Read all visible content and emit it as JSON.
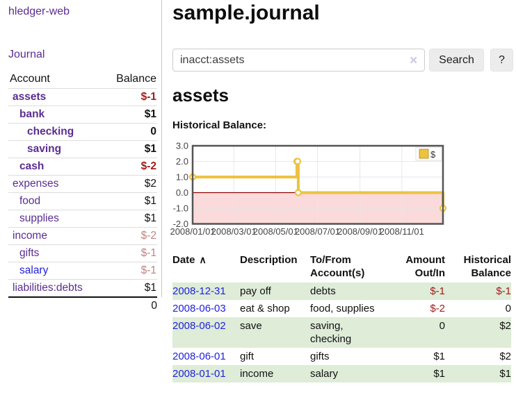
{
  "app": {
    "brand": "hledger-web",
    "nav": {
      "journal": "Journal"
    }
  },
  "sidebar": {
    "columns": {
      "account": "Account",
      "balance": "Balance"
    },
    "rows": [
      {
        "account": "assets",
        "balance": "$-1",
        "indent": 1
      },
      {
        "account": "bank",
        "balance": "$1",
        "indent": 2
      },
      {
        "account": "checking",
        "balance": "0",
        "indent": 3
      },
      {
        "account": "saving",
        "balance": "$1",
        "indent": 3
      },
      {
        "account": "cash",
        "balance": "$-2",
        "indent": 2
      },
      {
        "account": "expenses",
        "balance": "$2",
        "indent": 1
      },
      {
        "account": "food",
        "balance": "$1",
        "indent": 2
      },
      {
        "account": "supplies",
        "balance": "$1",
        "indent": 2
      },
      {
        "account": "income",
        "balance": "$-2",
        "indent": 1
      },
      {
        "account": "gifts",
        "balance": "$-1",
        "indent": 2
      },
      {
        "account": "salary",
        "balance": "$-1",
        "indent": 2
      },
      {
        "account": "liabilities:debts",
        "balance": "$1",
        "indent": 1
      }
    ],
    "total": "0"
  },
  "main": {
    "title": "sample.journal",
    "search": {
      "value": "inacct:assets",
      "clear_icon": "✕",
      "button": "Search",
      "help": "?"
    },
    "account_heading": "assets",
    "chart_label": "Historical Balance:"
  },
  "chart_data": {
    "type": "line",
    "step": true,
    "title": "Historical Balance",
    "series": [
      {
        "name": "$",
        "color": "#edc240",
        "points": [
          [
            "2008-01-01",
            1
          ],
          [
            "2008-06-01",
            2
          ],
          [
            "2008-06-02",
            2
          ],
          [
            "2008-06-03",
            0
          ],
          [
            "2008-12-31",
            -1
          ]
        ]
      }
    ],
    "xrange": [
      "2008-01-01",
      "2008-12-31"
    ],
    "ylim": [
      -2,
      3
    ],
    "yticks": [
      "3.0",
      "2.0",
      "1.0",
      "0.0",
      "-1.0",
      "-2.0"
    ],
    "xticks": [
      "2008/01/01",
      "2008/03/01",
      "2008/05/01",
      "2008/07/01",
      "2008/09/01",
      "2008/11/01"
    ],
    "legend": {
      "label": "$",
      "swatch": "#edc240",
      "position": "top-right"
    },
    "grid": true,
    "grid_color": "#e7e7e7",
    "border_color": "#545454",
    "zero_line_color": "#8b0000",
    "negative_fill": "#fadada"
  },
  "register": {
    "sort_indicator": "∧",
    "headers": [
      "Date",
      "Description",
      "To/From Account(s)",
      "Amount Out/In",
      "Historical Balance"
    ],
    "rows": [
      {
        "date": "2008-12-31",
        "description": "pay off",
        "accounts": "debts",
        "amount": "$-1",
        "balance": "$-1"
      },
      {
        "date": "2008-06-03",
        "description": "eat & shop",
        "accounts": "food, supplies",
        "amount": "$-2",
        "balance": "0"
      },
      {
        "date": "2008-06-02",
        "description": "save",
        "accounts": "saving, checking",
        "amount": "0",
        "balance": "$2"
      },
      {
        "date": "2008-06-01",
        "description": "gift",
        "accounts": "gifts",
        "amount": "$1",
        "balance": "$2"
      },
      {
        "date": "2008-01-01",
        "description": "income",
        "accounts": "salary",
        "amount": "$1",
        "balance": "$1"
      }
    ]
  }
}
